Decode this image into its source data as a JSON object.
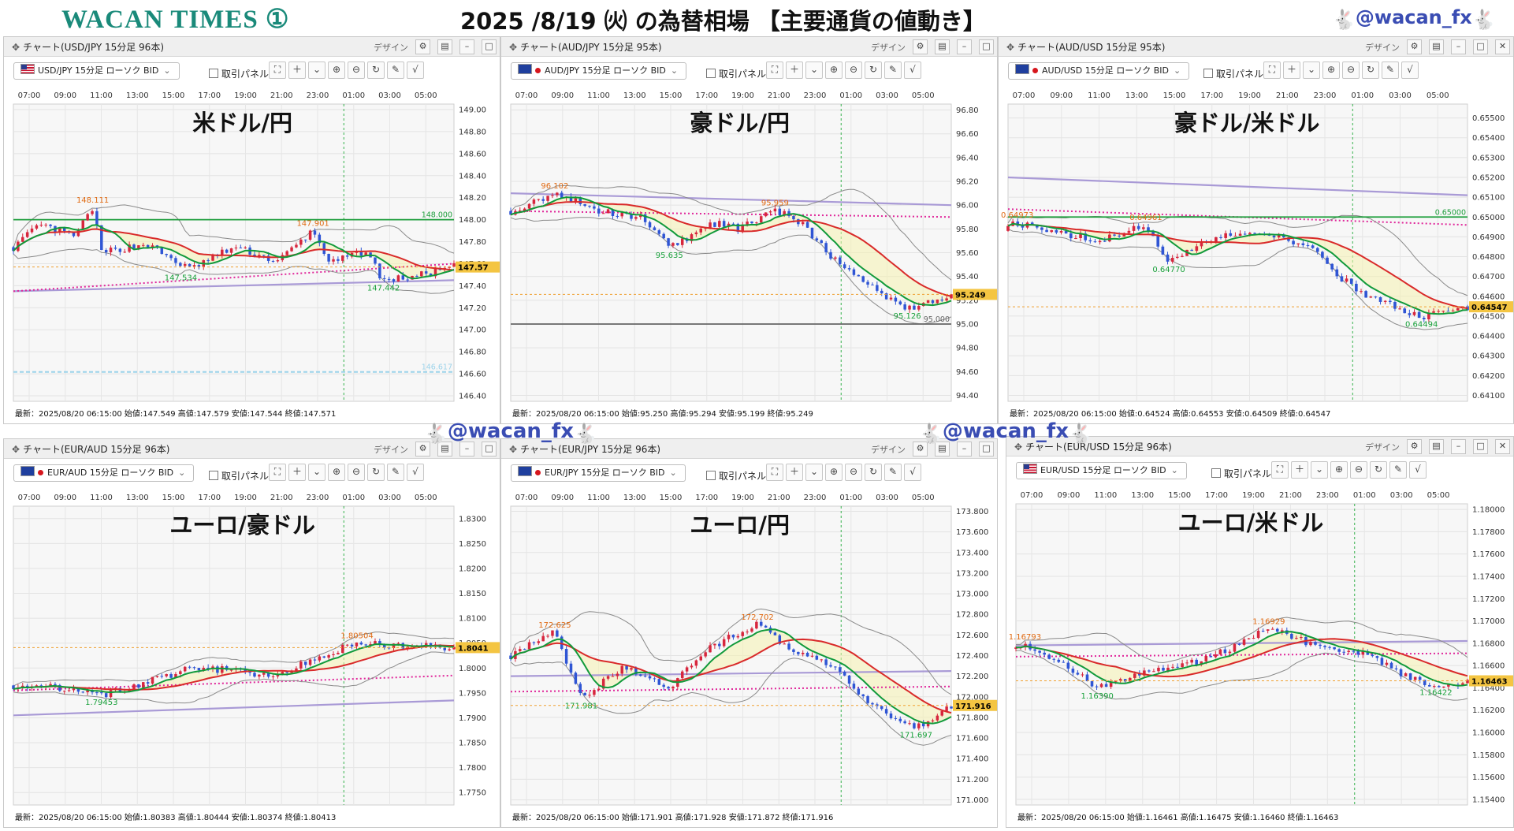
{
  "header": {
    "brand": "WACAN TIMES ①",
    "headline": "2025 /8/19 ㈫ の為替相場 【主要通貨の値動き】",
    "handle": "@wacan_fx"
  },
  "watermarks": [
    "@wacan_fx",
    "@wacan_fx"
  ],
  "ui": {
    "design_label": "デザイン",
    "trade_panel_label": "取引パネル",
    "rabbit_icon": "rabbit-icon"
  },
  "colors": {
    "bull_candle": "#d7263d",
    "bear_candle": "#2f55d4",
    "ma_short": "#119a3b",
    "ma_long": "#d92a2a",
    "ma_trend": "#a99ad6",
    "ma_dotted": "#e0269a",
    "bollinger": "#8a8a8a",
    "cloud_bull": "#f5f2b0",
    "cloud_bear": "#f6c6d9",
    "price_tag": "#f4c542",
    "day_divider": "#37b24d"
  },
  "panels": [
    {
      "title": "チャート(USD/JPY 15分足 96本)",
      "symbol": "USD/JPY 15分足 ローソク BID",
      "flag": "us",
      "big_label": "米ドル/円",
      "status": "最新：2025/08/20 06:15:00 始値:147.549 高値:147.579 安値:147.544 終値:147.571",
      "chart_data": {
        "type": "candlestick",
        "x_ticks": [
          "07:00",
          "09:00",
          "11:00",
          "13:00",
          "15:00",
          "17:00",
          "19:00",
          "21:00",
          "23:00",
          "01:00",
          "03:00",
          "05:00"
        ],
        "y_ticks": [
          "149.00",
          "148.80",
          "148.60",
          "148.40",
          "148.20",
          "148.00",
          "147.80",
          "147.60",
          "147.40",
          "147.20",
          "147.00",
          "146.80",
          "146.60",
          "146.40"
        ],
        "ylim": [
          146.35,
          149.05
        ],
        "day_divider_frac": 0.75,
        "open": 147.75,
        "path": [
          [
            0,
            147.75
          ],
          [
            0.06,
            147.95
          ],
          [
            0.14,
            147.85
          ],
          [
            0.18,
            148.111
          ],
          [
            0.2,
            147.7
          ],
          [
            0.3,
            147.78
          ],
          [
            0.4,
            147.55
          ],
          [
            0.5,
            147.75
          ],
          [
            0.6,
            147.62
          ],
          [
            0.68,
            147.901
          ],
          [
            0.72,
            147.6
          ],
          [
            0.8,
            147.72
          ],
          [
            0.84,
            147.442
          ],
          [
            0.93,
            147.5
          ],
          [
            1,
            147.571
          ]
        ],
        "annotations": [
          {
            "text": "148.111",
            "x": 0.18,
            "y": 148.111,
            "kind": "high"
          },
          {
            "text": "147.534",
            "x": 0.38,
            "y": 147.534,
            "kind": "low"
          },
          {
            "text": "147.901",
            "x": 0.68,
            "y": 147.901,
            "kind": "high"
          },
          {
            "text": "147.442",
            "x": 0.84,
            "y": 147.442,
            "kind": "low"
          }
        ],
        "hlines": [
          {
            "y": 148.0,
            "color": "#1e9e3c",
            "label": "148.000",
            "style": "solid"
          },
          {
            "y": 146.617,
            "color": "#9cd3ea",
            "label": "146.617",
            "style": "dashed"
          }
        ],
        "last_price": "147.57",
        "ma_trend": [
          147.35,
          147.45
        ],
        "ma_dotted": [
          147.35,
          147.6
        ],
        "ma_long_end": 147.65
      }
    },
    {
      "title": "チャート(AUD/JPY 15分足 95本)",
      "symbol": "AUD/JPY 15分足 ローソク BID",
      "flag": "au",
      "big_label": "豪ドル/円",
      "status": "最新：2025/08/20 06:15:00 始値:95.250 高値:95.294 安値:95.199 終値:95.249",
      "chart_data": {
        "type": "candlestick",
        "x_ticks": [
          "07:00",
          "09:00",
          "11:00",
          "13:00",
          "15:00",
          "17:00",
          "19:00",
          "21:00",
          "23:00",
          "01:00",
          "03:00",
          "05:00"
        ],
        "y_ticks": [
          "96.80",
          "96.60",
          "96.40",
          "96.20",
          "96.00",
          "95.80",
          "95.60",
          "95.40",
          "95.20",
          "95.00",
          "94.80",
          "94.60",
          "94.40"
        ],
        "ylim": [
          94.35,
          96.85
        ],
        "day_divider_frac": 0.75,
        "open": 95.95,
        "path": [
          [
            0,
            95.95
          ],
          [
            0.1,
            96.102
          ],
          [
            0.2,
            95.95
          ],
          [
            0.3,
            95.9
          ],
          [
            0.36,
            95.635
          ],
          [
            0.46,
            95.85
          ],
          [
            0.52,
            95.8
          ],
          [
            0.6,
            95.959
          ],
          [
            0.66,
            95.85
          ],
          [
            0.72,
            95.6
          ],
          [
            0.8,
            95.35
          ],
          [
            0.9,
            95.126
          ],
          [
            0.95,
            95.18
          ],
          [
            1,
            95.249
          ]
        ],
        "annotations": [
          {
            "text": "96.102",
            "x": 0.1,
            "y": 96.102,
            "kind": "high"
          },
          {
            "text": "95.635",
            "x": 0.36,
            "y": 95.635,
            "kind": "low"
          },
          {
            "text": "95.959",
            "x": 0.6,
            "y": 95.959,
            "kind": "high"
          },
          {
            "text": "95.126",
            "x": 0.9,
            "y": 95.126,
            "kind": "low"
          }
        ],
        "hlines": [
          {
            "y": 95.0,
            "color": "#666666",
            "label": "95.000",
            "style": "solid"
          }
        ],
        "last_price": "95.249",
        "ma_trend": [
          96.1,
          96.0
        ],
        "ma_dotted": [
          95.95,
          95.9
        ],
        "ma_long_end": 95.45
      }
    },
    {
      "title": "チャート(AUD/USD 15分足 95本)",
      "symbol": "AUD/USD 15分足 ローソク BID",
      "flag": "au",
      "big_label": "豪ドル/米ドル",
      "status": "最新：2025/08/20 06:15:00 始値:0.64524 高値:0.64553 安値:0.64509 終値:0.64547",
      "chart_data": {
        "type": "candlestick",
        "x_ticks": [
          "07:00",
          "09:00",
          "11:00",
          "13:00",
          "15:00",
          "17:00",
          "19:00",
          "21:00",
          "23:00",
          "01:00",
          "03:00",
          "05:00"
        ],
        "y_ticks": [
          "0.65500",
          "0.65400",
          "0.65300",
          "0.65200",
          "0.65100",
          "0.65000",
          "0.64900",
          "0.64800",
          "0.64700",
          "0.64600",
          "0.64500",
          "0.64400",
          "0.64300",
          "0.64200",
          "0.64100"
        ],
        "ylim": [
          0.6407,
          0.6557
        ],
        "day_divider_frac": 0.75,
        "open": 0.6493,
        "path": [
          [
            0,
            0.64973
          ],
          [
            0.1,
            0.6493
          ],
          [
            0.2,
            0.6488
          ],
          [
            0.3,
            0.64961
          ],
          [
            0.35,
            0.6477
          ],
          [
            0.42,
            0.6486
          ],
          [
            0.5,
            0.6492
          ],
          [
            0.6,
            0.6489
          ],
          [
            0.66,
            0.6485
          ],
          [
            0.72,
            0.647
          ],
          [
            0.8,
            0.6458
          ],
          [
            0.9,
            0.64494
          ],
          [
            1,
            0.64547
          ]
        ],
        "annotations": [
          {
            "text": "0.64973",
            "x": 0.02,
            "y": 0.64973,
            "kind": "high"
          },
          {
            "text": "0.64961",
            "x": 0.3,
            "y": 0.64961,
            "kind": "high"
          },
          {
            "text": "0.64770",
            "x": 0.35,
            "y": 0.6477,
            "kind": "low"
          },
          {
            "text": "0.64494",
            "x": 0.9,
            "y": 0.64494,
            "kind": "low"
          }
        ],
        "hlines": [
          {
            "y": 0.65,
            "color": "#1e9e3c",
            "label": "0.65000",
            "style": "solid"
          }
        ],
        "last_price": "0.64547",
        "ma_trend": [
          0.652,
          0.6511
        ],
        "ma_dotted": [
          0.6504,
          0.6496
        ],
        "ma_long_end": 0.6475
      }
    },
    {
      "title": "チャート(EUR/AUD 15分足 96本)",
      "symbol": "EUR/AUD 15分足 ローソク BID",
      "flag": "eu",
      "big_label": "ユーロ/豪ドル",
      "status": "最新：2025/08/20 06:15:00 始値:1.80383 高値:1.80444 安値:1.80374 終値:1.80413",
      "chart_data": {
        "type": "candlestick",
        "x_ticks": [
          "07:00",
          "09:00",
          "11:00",
          "13:00",
          "15:00",
          "17:00",
          "19:00",
          "21:00",
          "23:00",
          "01:00",
          "03:00",
          "05:00"
        ],
        "y_ticks": [
          "1.8300",
          "1.8250",
          "1.8200",
          "1.8150",
          "1.8100",
          "1.8050",
          "1.8000",
          "1.7950",
          "1.7900",
          "1.7850",
          "1.7800",
          "1.7750"
        ],
        "ylim": [
          1.7725,
          1.8325
        ],
        "day_divider_frac": 0.75,
        "open": 1.7965,
        "path": [
          [
            0,
            1.7965
          ],
          [
            0.1,
            1.7962
          ],
          [
            0.2,
            1.79453
          ],
          [
            0.3,
            1.797
          ],
          [
            0.4,
            1.8
          ],
          [
            0.5,
            1.7995
          ],
          [
            0.6,
            1.7985
          ],
          [
            0.7,
            1.8025
          ],
          [
            0.78,
            1.80504
          ],
          [
            0.88,
            1.8045
          ],
          [
            1,
            1.80413
          ]
        ],
        "annotations": [
          {
            "text": "1.79453",
            "x": 0.2,
            "y": 1.79453,
            "kind": "low"
          },
          {
            "text": "1.80504",
            "x": 0.78,
            "y": 1.80504,
            "kind": "high"
          }
        ],
        "hlines": [],
        "last_price": "1.8041",
        "ma_trend": [
          1.7905,
          1.7935
        ],
        "ma_dotted": [
          1.7955,
          1.7985
        ],
        "ma_long_end": 1.8025
      }
    },
    {
      "title": "チャート(EUR/JPY 15分足 96本)",
      "symbol": "EUR/JPY 15分足 ローソク BID",
      "flag": "eu",
      "big_label": "ユーロ/円",
      "status": "最新：2025/08/20 06:15:00 始値:171.901 高値:171.928 安値:171.872 終値:171.916",
      "chart_data": {
        "type": "candlestick",
        "x_ticks": [
          "07:00",
          "09:00",
          "11:00",
          "13:00",
          "15:00",
          "17:00",
          "19:00",
          "21:00",
          "23:00",
          "01:00",
          "03:00",
          "05:00"
        ],
        "y_ticks": [
          "173.800",
          "173.600",
          "173.400",
          "173.200",
          "173.000",
          "172.800",
          "172.600",
          "172.400",
          "172.200",
          "172.000",
          "171.800",
          "171.600",
          "171.400",
          "171.200",
          "171.000"
        ],
        "ylim": [
          170.95,
          173.85
        ],
        "day_divider_frac": 0.75,
        "open": 172.4,
        "path": [
          [
            0,
            172.4
          ],
          [
            0.1,
            172.625
          ],
          [
            0.16,
            171.981
          ],
          [
            0.26,
            172.3
          ],
          [
            0.36,
            172.1
          ],
          [
            0.46,
            172.5
          ],
          [
            0.56,
            172.702
          ],
          [
            0.66,
            172.4
          ],
          [
            0.74,
            172.3
          ],
          [
            0.82,
            171.9
          ],
          [
            0.92,
            171.697
          ],
          [
            1,
            171.916
          ]
        ],
        "annotations": [
          {
            "text": "172.625",
            "x": 0.1,
            "y": 172.625,
            "kind": "high"
          },
          {
            "text": "171.981",
            "x": 0.16,
            "y": 171.981,
            "kind": "low"
          },
          {
            "text": "172.702",
            "x": 0.56,
            "y": 172.702,
            "kind": "high"
          },
          {
            "text": "171.697",
            "x": 0.92,
            "y": 171.697,
            "kind": "low"
          }
        ],
        "hlines": [],
        "last_price": "171.916",
        "ma_trend": [
          172.2,
          172.25
        ],
        "ma_dotted": [
          172.05,
          172.1
        ],
        "ma_long_end": 172.15
      }
    },
    {
      "title": "チャート(EUR/USD 15分足 96本)",
      "symbol": "EUR/USD 15分足 ローソク BID",
      "flag": "us",
      "big_label": "ユーロ/米ドル",
      "status": "最新：2025/08/20 06:15:00 始値:1.16461 高値:1.16475 安値:1.16460 終値:1.16463",
      "chart_data": {
        "type": "candlestick",
        "x_ticks": [
          "07:00",
          "09:00",
          "11:00",
          "13:00",
          "15:00",
          "17:00",
          "19:00",
          "21:00",
          "23:00",
          "01:00",
          "03:00",
          "05:00"
        ],
        "y_ticks": [
          "1.18000",
          "1.17800",
          "1.17600",
          "1.17400",
          "1.17200",
          "1.17000",
          "1.16800",
          "1.16600",
          "1.16400",
          "1.16200",
          "1.16000",
          "1.15800",
          "1.15600",
          "1.15400"
        ],
        "ylim": [
          1.1535,
          1.1805
        ],
        "day_divider_frac": 0.75,
        "open": 1.1675,
        "path": [
          [
            0,
            1.16793
          ],
          [
            0.1,
            1.1665
          ],
          [
            0.18,
            1.1639
          ],
          [
            0.3,
            1.1655
          ],
          [
            0.42,
            1.1665
          ],
          [
            0.56,
            1.16929
          ],
          [
            0.66,
            1.1678
          ],
          [
            0.76,
            1.1672
          ],
          [
            0.86,
            1.1652
          ],
          [
            0.93,
            1.16422
          ],
          [
            1,
            1.16463
          ]
        ],
        "annotations": [
          {
            "text": "1.16793",
            "x": 0.02,
            "y": 1.16793,
            "kind": "high"
          },
          {
            "text": "1.16390",
            "x": 0.18,
            "y": 1.1639,
            "kind": "low"
          },
          {
            "text": "1.16929",
            "x": 0.56,
            "y": 1.16929,
            "kind": "high"
          },
          {
            "text": "1.16422",
            "x": 0.93,
            "y": 1.16422,
            "kind": "low"
          }
        ],
        "hlines": [],
        "last_price": "1.16463",
        "ma_trend": [
          1.1678,
          1.1682
        ],
        "ma_dotted": [
          1.1668,
          1.1671
        ],
        "ma_long_end": 1.1658
      }
    }
  ]
}
